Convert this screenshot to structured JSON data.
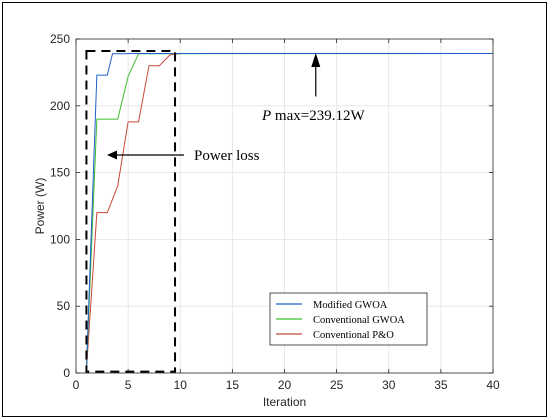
{
  "chart_data": {
    "type": "line",
    "xlabel": "Iteration",
    "ylabel": "Power (W)",
    "xlim": [
      0,
      40
    ],
    "ylim": [
      0,
      250
    ],
    "xticks": [
      0,
      5,
      10,
      15,
      20,
      25,
      30,
      35,
      40
    ],
    "yticks": [
      0,
      50,
      100,
      150,
      200,
      250
    ],
    "grid": true,
    "legend_placement": "bottom-right",
    "series": [
      {
        "name": "Modified GWOA",
        "color": "#1f5fc9",
        "x": [
          1,
          2,
          3,
          3.5,
          4.5,
          5.5,
          40
        ],
        "y": [
          2,
          223,
          223,
          239,
          239,
          239.12,
          239.12
        ]
      },
      {
        "name": "Conventional GWOA",
        "color": "#3dbf2c",
        "x": [
          1,
          2,
          4,
          5,
          6,
          40
        ],
        "y": [
          2,
          190,
          190,
          222,
          239,
          239.12
        ]
      },
      {
        "name": "Conventional P&O",
        "color": "#c8483a",
        "x": [
          1,
          2,
          3,
          4,
          5,
          6,
          7,
          8,
          9,
          10,
          40
        ],
        "y": [
          2,
          120,
          120,
          140,
          188,
          188,
          230,
          230,
          238,
          239.12,
          239.12
        ]
      }
    ],
    "annotations": {
      "pmax_prefix": "P",
      "pmax_text": " max=239.12W",
      "power_loss": "Power loss"
    },
    "dashed_box_data": {
      "x": [
        1,
        9.5
      ],
      "y": [
        1,
        241
      ]
    }
  }
}
